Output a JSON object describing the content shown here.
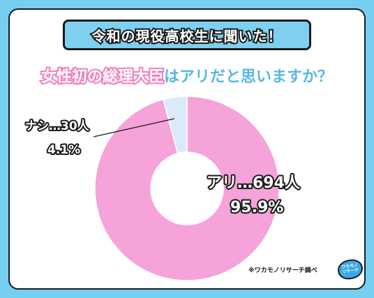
{
  "banner": "令和の現役高校生に聞いた！",
  "subtitle": {
    "highlight": "女性初の総理大臣",
    "rest": "はアリだと思いますか？"
  },
  "chart_data": {
    "type": "pie",
    "categories": [
      "アリ",
      "ナシ"
    ],
    "values": [
      694,
      30
    ],
    "percent": [
      "95.9%",
      "4.1%"
    ],
    "labels": [
      "アリ…694人",
      "ナシ…30人"
    ],
    "colors": [
      "#f5a3d9",
      "#dbeaf8"
    ],
    "donut": true
  },
  "footnote": "※ワカモノリサーチ調べ",
  "logo": {
    "line1": "ワカモノ",
    "line2": "リサーチ"
  }
}
